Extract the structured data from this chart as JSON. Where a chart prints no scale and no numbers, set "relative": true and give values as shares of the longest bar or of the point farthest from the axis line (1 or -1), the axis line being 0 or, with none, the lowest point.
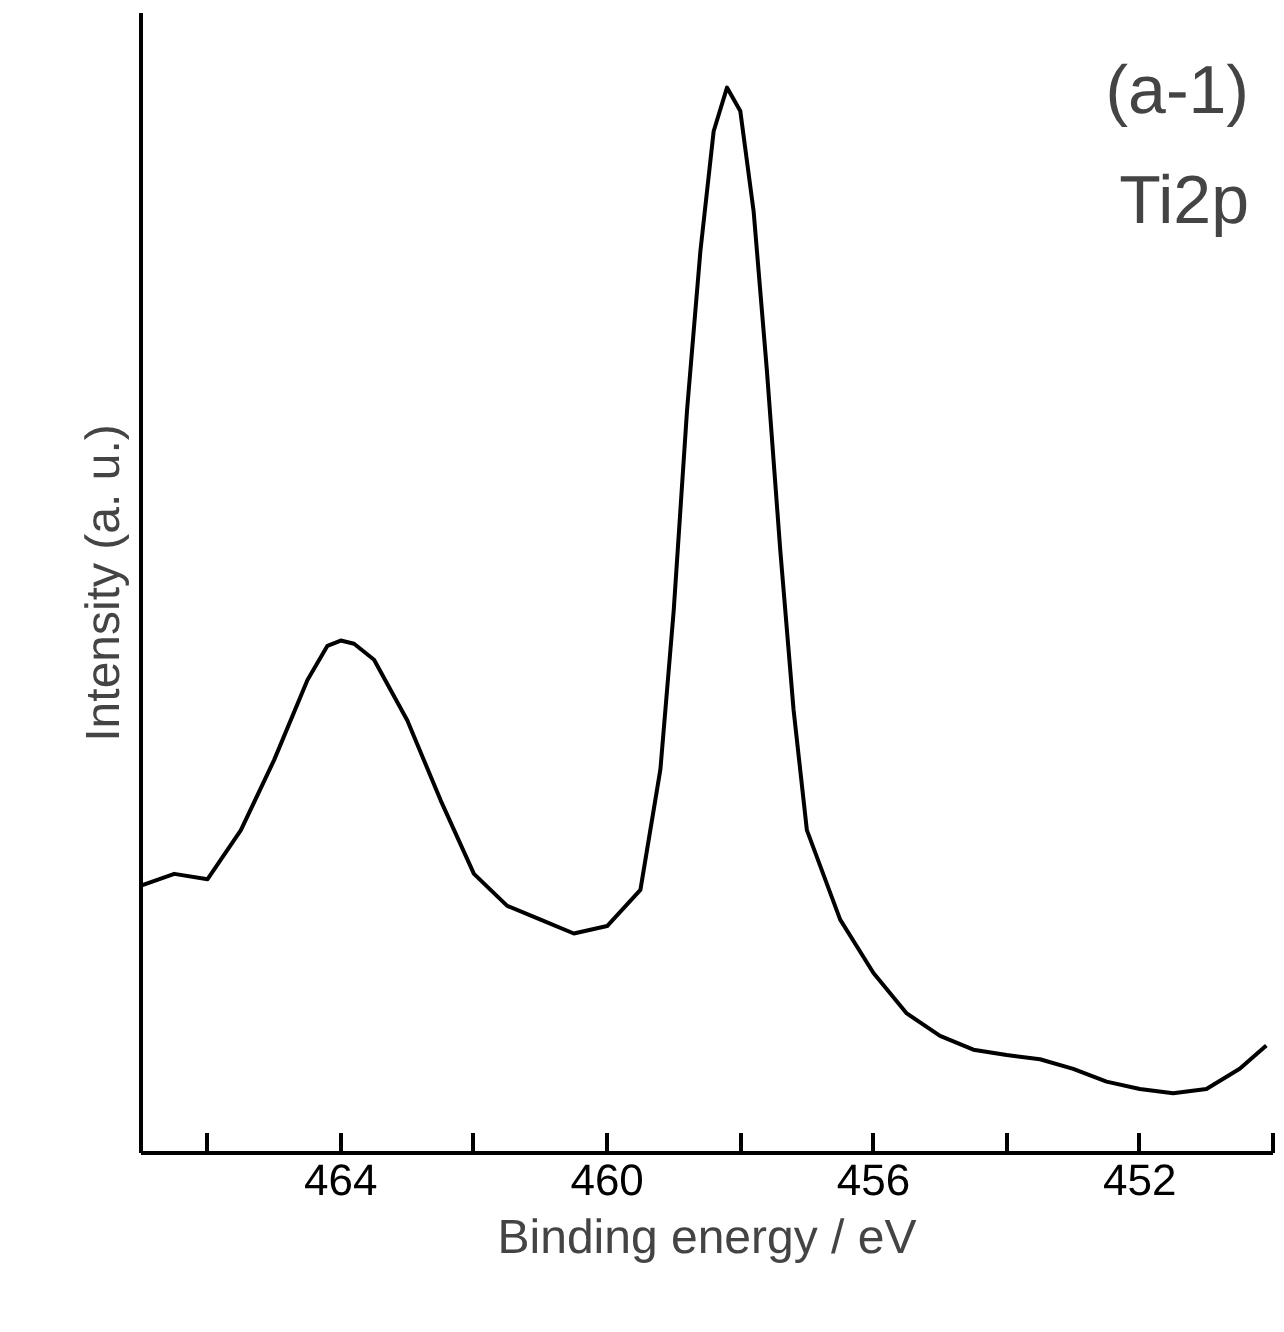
{
  "chart_data": {
    "type": "line",
    "relative": true,
    "xlabel": "Binding energy / eV",
    "ylabel": "Intensity (a. u.)",
    "annotations": [
      "(a-1)",
      "Ti2p"
    ],
    "xlim": [
      467,
      450
    ],
    "xticks": [
      {
        "value": 466,
        "label": null
      },
      464,
      {
        "value": 462,
        "label": null
      },
      460,
      {
        "value": 458,
        "label": null
      },
      456,
      {
        "value": 454,
        "label": null
      },
      452,
      {
        "value": 450,
        "label": null
      }
    ],
    "grid": false,
    "series": [
      {
        "color": "#000000",
        "x": [
          467,
          466.5,
          466,
          465.5,
          465,
          464.5,
          464.2,
          464,
          463.8,
          463.5,
          463,
          462.5,
          462,
          461.5,
          461,
          460.5,
          460,
          459.5,
          459.2,
          459,
          458.8,
          458.6,
          458.4,
          458.2,
          458.0,
          457.8,
          457.6,
          457.4,
          457.2,
          457,
          456.5,
          456,
          455.5,
          455,
          454.5,
          454,
          453.5,
          453,
          452.5,
          452,
          451.5,
          451,
          450.5,
          450.1
        ],
        "values": [
          0.251,
          0.262,
          0.257,
          0.303,
          0.369,
          0.444,
          0.476,
          0.481,
          0.478,
          0.463,
          0.406,
          0.331,
          0.262,
          0.232,
          0.219,
          0.206,
          0.213,
          0.247,
          0.36,
          0.509,
          0.697,
          0.846,
          0.959,
          1,
          0.978,
          0.884,
          0.734,
          0.566,
          0.416,
          0.303,
          0.219,
          0.169,
          0.131,
          0.11,
          0.097,
          0.092,
          0.088,
          0.079,
          0.067,
          0.06,
          0.056,
          0.06,
          0.079,
          0.101
        ]
      }
    ]
  }
}
